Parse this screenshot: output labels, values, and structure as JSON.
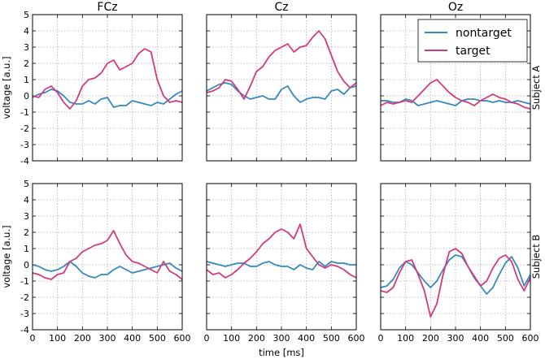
{
  "chart_data": {
    "type": "line",
    "columns": [
      "FCz",
      "Cz",
      "Oz"
    ],
    "rows": [
      "Subject A",
      "Subject B"
    ],
    "xlabel": "time [ms]",
    "ylabel": "voltage [a.u.]",
    "xlim": [
      0,
      600
    ],
    "ylim": [
      -4,
      5
    ],
    "xticks": [
      0,
      100,
      200,
      300,
      400,
      500,
      600
    ],
    "yticks": [
      -4,
      -3,
      -2,
      -1,
      0,
      1,
      2,
      3,
      4,
      5
    ],
    "grid": true,
    "legend": {
      "placement": "top-right",
      "entries": [
        "nontarget",
        "target"
      ]
    },
    "colors": {
      "nontarget": "#348ABD",
      "target": "#D33B7A"
    },
    "x": [
      0,
      25,
      50,
      75,
      100,
      125,
      150,
      175,
      200,
      225,
      250,
      275,
      300,
      325,
      350,
      375,
      400,
      425,
      450,
      475,
      500,
      525,
      550,
      575,
      600
    ],
    "panels": [
      {
        "row": "Subject A",
        "column": "FCz",
        "series": [
          {
            "name": "nontarget",
            "values": [
              -0.1,
              0.1,
              0.2,
              0.4,
              0.3,
              0.0,
              -0.4,
              -0.5,
              -0.5,
              -0.3,
              -0.5,
              -0.2,
              -0.1,
              -0.7,
              -0.6,
              -0.6,
              -0.3,
              -0.4,
              -0.5,
              -0.6,
              -0.4,
              -0.5,
              -0.2,
              0.1,
              0.3
            ]
          },
          {
            "name": "target",
            "values": [
              0.0,
              -0.1,
              0.4,
              0.6,
              0.2,
              -0.4,
              -0.8,
              -0.3,
              0.6,
              1.0,
              1.1,
              1.4,
              2.0,
              2.2,
              1.6,
              1.8,
              2.0,
              2.6,
              2.9,
              2.7,
              1.0,
              0.0,
              -0.4,
              -0.3,
              -0.4
            ]
          }
        ]
      },
      {
        "row": "Subject A",
        "column": "Cz",
        "series": [
          {
            "name": "nontarget",
            "values": [
              0.3,
              0.5,
              0.7,
              0.8,
              0.7,
              0.3,
              0.0,
              -0.2,
              -0.1,
              0.0,
              -0.2,
              -0.2,
              0.4,
              0.6,
              0.0,
              -0.4,
              -0.2,
              -0.1,
              -0.1,
              -0.2,
              0.3,
              0.4,
              0.1,
              0.5,
              0.6
            ]
          },
          {
            "name": "target",
            "values": [
              0.2,
              0.3,
              0.5,
              1.0,
              0.9,
              0.4,
              -0.2,
              0.6,
              1.5,
              1.8,
              2.4,
              2.8,
              3.0,
              3.2,
              2.7,
              3.0,
              3.1,
              3.6,
              4.0,
              3.5,
              2.5,
              1.5,
              0.9,
              0.5,
              0.8
            ]
          }
        ]
      },
      {
        "row": "Subject A",
        "column": "Oz",
        "series": [
          {
            "name": "nontarget",
            "values": [
              -0.3,
              -0.3,
              -0.4,
              -0.4,
              -0.2,
              -0.3,
              -0.6,
              -0.5,
              -0.4,
              -0.3,
              -0.4,
              -0.5,
              -0.6,
              -0.3,
              -0.2,
              -0.2,
              -0.3,
              -0.3,
              -0.4,
              -0.3,
              -0.4,
              -0.4,
              -0.3,
              -0.4,
              -0.5
            ]
          },
          {
            "name": "target",
            "values": [
              -0.6,
              -0.4,
              -0.5,
              -0.4,
              -0.3,
              -0.4,
              0.0,
              0.4,
              0.8,
              1.0,
              0.6,
              0.2,
              -0.1,
              -0.3,
              -0.4,
              -0.6,
              -0.3,
              -0.1,
              0.1,
              -0.1,
              -0.2,
              -0.4,
              -0.5,
              -0.7,
              -0.8
            ]
          }
        ]
      },
      {
        "row": "Subject B",
        "column": "FCz",
        "series": [
          {
            "name": "nontarget",
            "values": [
              0.0,
              -0.1,
              -0.3,
              -0.4,
              -0.3,
              -0.1,
              0.2,
              -0.1,
              -0.5,
              -0.7,
              -0.8,
              -0.6,
              -0.6,
              -0.3,
              -0.1,
              -0.3,
              -0.5,
              -0.4,
              -0.3,
              -0.2,
              -0.1,
              0.0,
              0.1,
              -0.2,
              -0.4
            ]
          },
          {
            "name": "target",
            "values": [
              -0.5,
              -0.6,
              -0.8,
              -0.9,
              -0.6,
              -0.5,
              0.2,
              0.4,
              0.8,
              1.0,
              1.2,
              1.3,
              1.5,
              2.1,
              1.3,
              0.6,
              0.2,
              0.1,
              -0.1,
              -0.3,
              -0.5,
              0.2,
              -0.4,
              -0.6,
              -0.9
            ]
          }
        ]
      },
      {
        "row": "Subject B",
        "column": "Cz",
        "series": [
          {
            "name": "nontarget",
            "values": [
              0.2,
              0.1,
              0.0,
              -0.1,
              0.0,
              0.1,
              0.1,
              -0.1,
              -0.1,
              0.1,
              0.2,
              0.0,
              -0.1,
              -0.1,
              -0.3,
              0.0,
              -0.2,
              -0.3,
              0.2,
              -0.1,
              0.2,
              0.1,
              0.1,
              0.0,
              0.0
            ]
          },
          {
            "name": "target",
            "values": [
              -0.3,
              -0.6,
              -0.5,
              -0.8,
              -0.6,
              -0.3,
              0.1,
              0.4,
              0.8,
              1.3,
              1.6,
              2.0,
              2.2,
              2.0,
              1.6,
              2.5,
              1.0,
              0.5,
              0.0,
              -0.2,
              0.0,
              -0.1,
              -0.3,
              -0.6,
              -0.8
            ]
          }
        ]
      },
      {
        "row": "Subject B",
        "column": "Oz",
        "series": [
          {
            "name": "nontarget",
            "values": [
              -1.4,
              -1.3,
              -0.9,
              -0.2,
              0.2,
              0.0,
              -0.5,
              -1.0,
              -1.4,
              -1.0,
              -0.3,
              0.3,
              0.6,
              0.5,
              -0.1,
              -0.8,
              -1.3,
              -1.8,
              -1.4,
              -0.6,
              0.1,
              0.5,
              -0.2,
              -1.3,
              -0.6
            ]
          },
          {
            "name": "target",
            "values": [
              -1.6,
              -1.7,
              -1.4,
              -0.5,
              0.2,
              0.3,
              -0.6,
              -1.6,
              -3.2,
              -2.4,
              -0.6,
              0.8,
              1.0,
              0.7,
              -0.1,
              -0.7,
              -1.3,
              -1.0,
              -0.2,
              0.4,
              0.6,
              0.2,
              -0.9,
              -1.6,
              -0.8
            ]
          }
        ]
      }
    ]
  }
}
